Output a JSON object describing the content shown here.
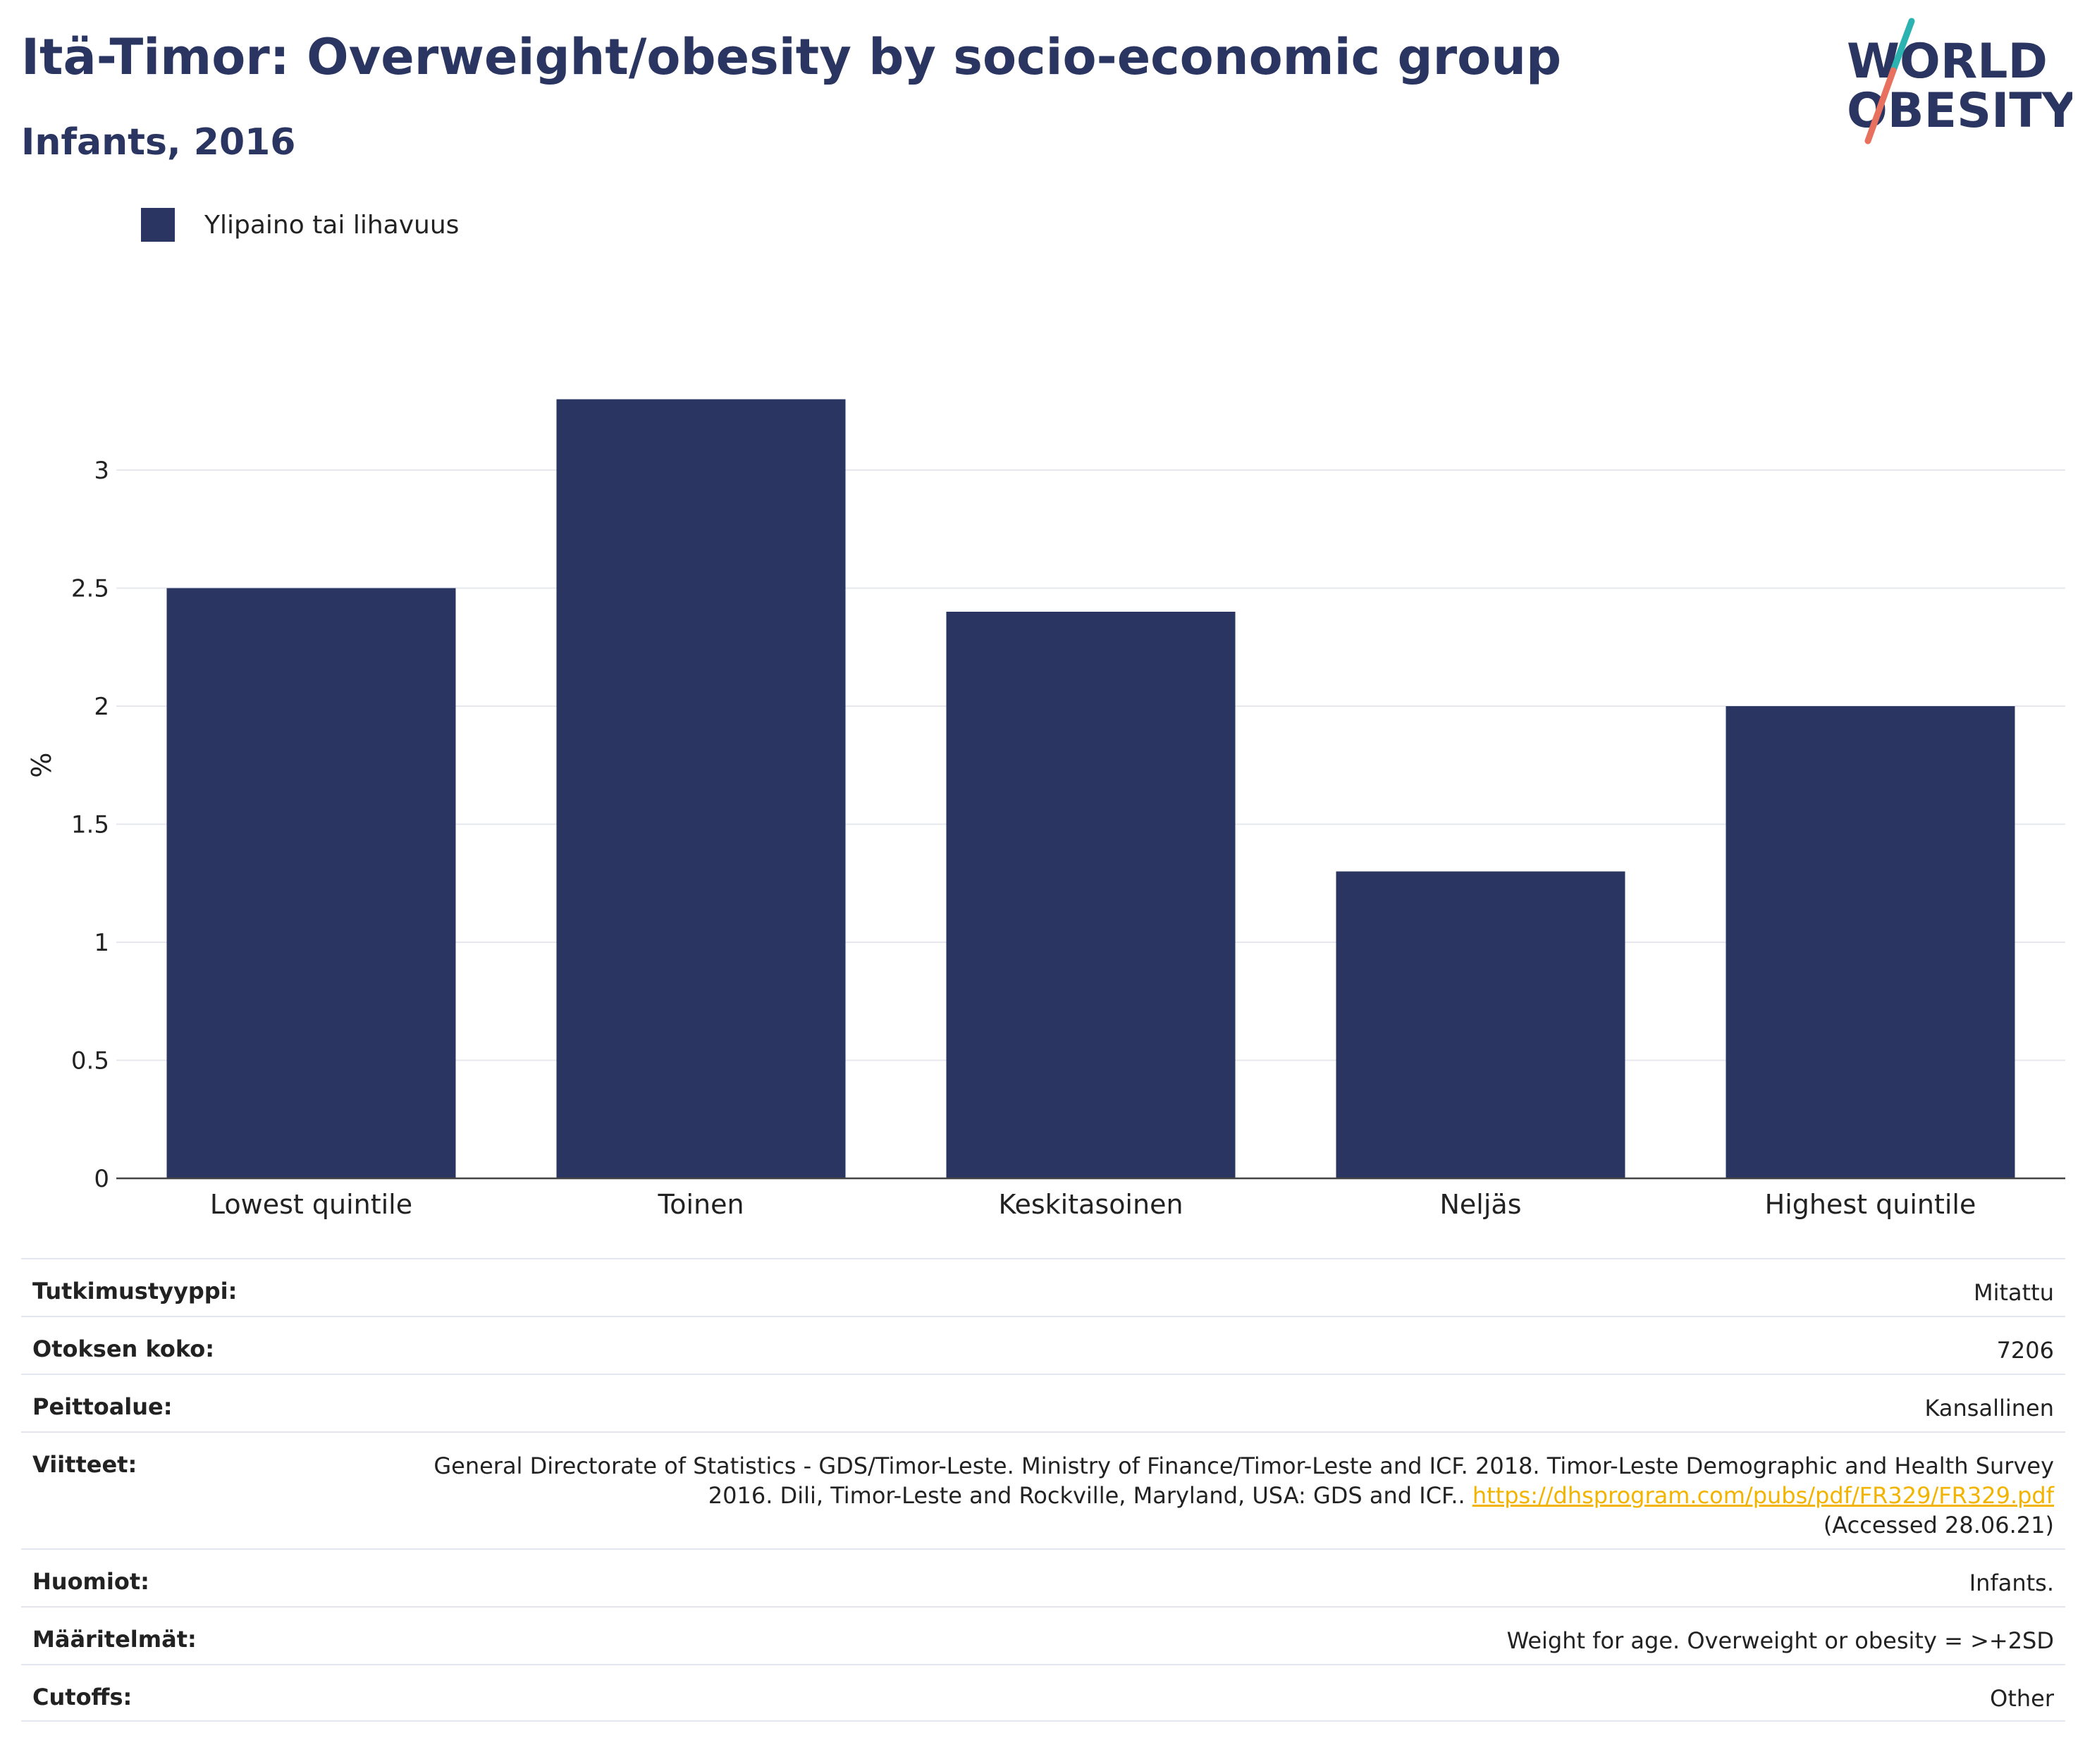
{
  "header": {
    "title": "Itä-Timor: Overweight/obesity by socio-economic group",
    "subtitle": "Infants, 2016"
  },
  "logo": {
    "line1": "WORLD",
    "line2": "OBESITY",
    "colors": {
      "text": "#2a3561",
      "slash_top": "#2ab3b1",
      "slash_bottom": "#e8705e"
    }
  },
  "legend": {
    "label": "Ylipaino tai lihavuus",
    "color": "#2a3561"
  },
  "chart_data": {
    "type": "bar",
    "categories": [
      "Lowest quintile",
      "Toinen",
      "Keskitasoinen",
      "Neljäs",
      "Highest quintile"
    ],
    "series": [
      {
        "name": "Ylipaino tai lihavuus",
        "values": [
          2.5,
          3.3,
          2.4,
          1.3,
          2.0
        ],
        "color": "#2a3561"
      }
    ],
    "ylabel": "%",
    "ylim": [
      0,
      3.5
    ],
    "yticks": [
      0,
      0.5,
      1,
      1.5,
      2,
      2.5,
      3
    ],
    "ytick_labels": [
      "0",
      "0.5",
      "1",
      "1.5",
      "2",
      "2.5",
      "3"
    ],
    "grid": true,
    "legend_position": "top-left"
  },
  "meta": {
    "rows": [
      {
        "key": "Tutkimustyyppi:",
        "value": "Mitattu"
      },
      {
        "key": "Otoksen koko:",
        "value": "7206"
      },
      {
        "key": "Peittoalue:",
        "value": "Kansallinen"
      },
      {
        "key": "Viitteet:",
        "value": "General Directorate of Statistics - GDS/Timor-Leste. Ministry of Finance/Timor-Leste and ICF. 2018. Timor-Leste Demographic and Health Survey 2016. Dili, Timor-Leste and Rockville, Maryland, USA: GDS and ICF..",
        "link": "https://dhsprogram.com/pubs/pdf/FR329/FR329.pdf",
        "suffix": "(Accessed 28.06.21)"
      },
      {
        "key": "Huomiot:",
        "value": "Infants."
      },
      {
        "key": "Määritelmät:",
        "value": "Weight for age. Overweight or obesity = >+2SD"
      },
      {
        "key": "Cutoffs:",
        "value": "Other"
      }
    ]
  }
}
